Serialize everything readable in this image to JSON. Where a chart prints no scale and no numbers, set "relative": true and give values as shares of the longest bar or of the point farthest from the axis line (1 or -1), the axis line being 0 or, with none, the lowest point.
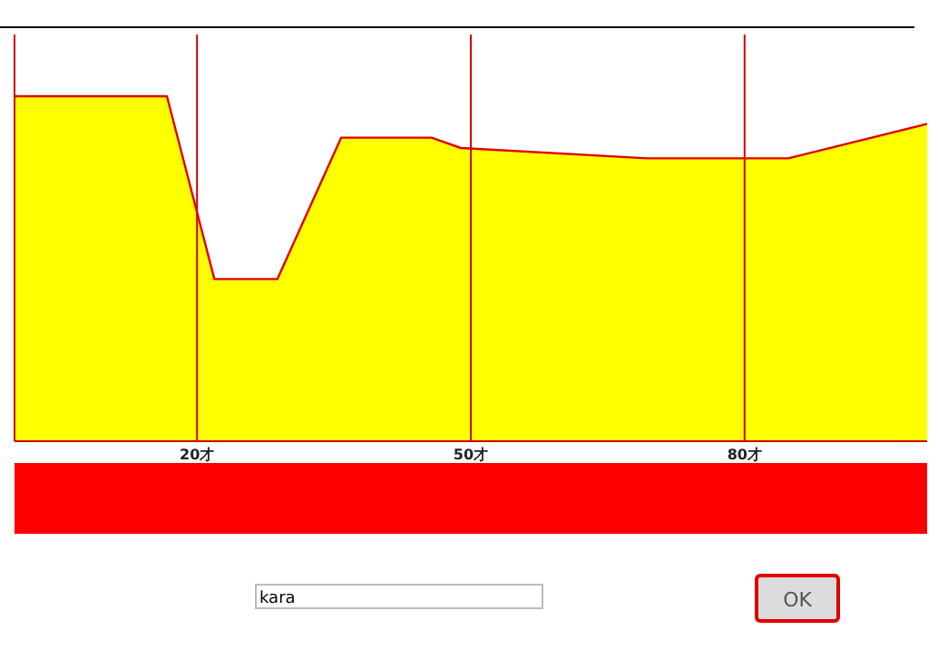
{
  "chart_data": {
    "type": "area",
    "relative": true,
    "x": [
      0,
      16.7,
      21.9,
      28.8,
      35.8,
      45.7,
      48.9,
      69.3,
      84.8,
      100
    ],
    "series": [
      {
        "color": "#ffff00",
        "values": [
          1,
          1,
          0.47,
          0.47,
          0.88,
          0.88,
          0.85,
          0.82,
          0.82,
          0.92
        ]
      }
    ],
    "xlim": [
      0,
      100
    ],
    "xticks": [
      {
        "value": 20,
        "label": "20才"
      },
      {
        "value": 50,
        "label": "50才"
      },
      {
        "value": 80,
        "label": "80才"
      }
    ],
    "grid": "x",
    "annotations": [
      "kara",
      "OK"
    ]
  }
}
